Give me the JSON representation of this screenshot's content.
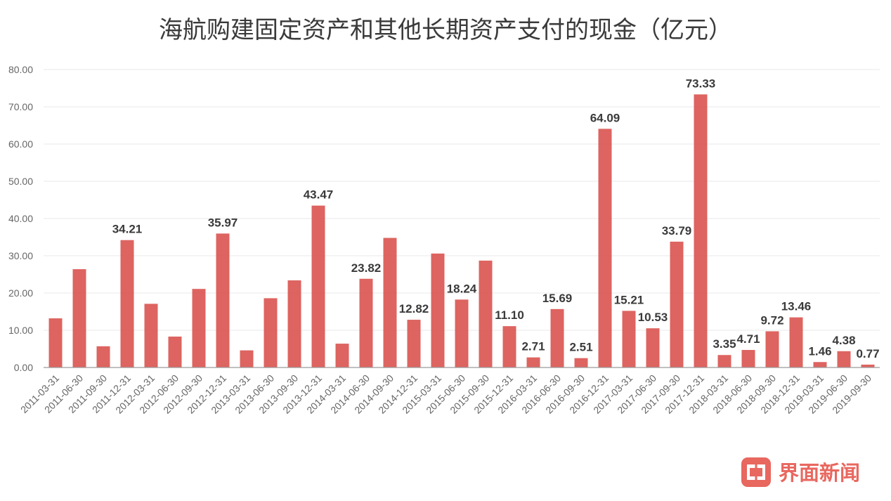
{
  "chart_data": {
    "type": "bar",
    "title": "海航购建固定资产和其他长期资产支付的现金（亿元）",
    "xlabel": "",
    "ylabel": "",
    "ylim": [
      0,
      80
    ],
    "yticks": [
      "0.00",
      "10.00",
      "20.00",
      "30.00",
      "40.00",
      "50.00",
      "60.00",
      "70.00",
      "80.00"
    ],
    "grid": true,
    "categories": [
      "2011-03-31",
      "2011-06-30",
      "2011-09-30",
      "2011-12-31",
      "2012-03-31",
      "2012-06-30",
      "2012-09-30",
      "2012-12-31",
      "2013-03-31",
      "2013-06-30",
      "2013-09-30",
      "2013-12-31",
      "2014-03-31",
      "2014-06-30",
      "2014-09-30",
      "2014-12-31",
      "2015-03-31",
      "2015-06-30",
      "2015-09-30",
      "2015-12-31",
      "2016-03-31",
      "2016-06-30",
      "2016-09-30",
      "2016-12-31",
      "2017-03-31",
      "2017-06-30",
      "2017-09-30",
      "2017-12-31",
      "2018-03-31",
      "2018-06-30",
      "2018-09-30",
      "2018-12-31",
      "2019-03-31",
      "2019-06-30",
      "2019-09-30"
    ],
    "values": [
      13.2,
      26.4,
      5.7,
      34.21,
      17.1,
      8.3,
      21.1,
      35.97,
      4.6,
      18.6,
      23.4,
      43.47,
      6.4,
      23.82,
      34.8,
      12.82,
      30.6,
      18.24,
      28.7,
      11.1,
      2.71,
      15.69,
      2.51,
      64.09,
      15.21,
      10.53,
      33.79,
      73.33,
      3.35,
      4.71,
      9.72,
      13.46,
      1.46,
      4.38,
      0.77
    ],
    "data_labels": [
      "",
      "",
      "",
      "34.21",
      "",
      "",
      "",
      "35.97",
      "",
      "",
      "",
      "43.47",
      "",
      "23.82",
      "",
      "12.82",
      "",
      "18.24",
      "",
      "11.10",
      "2.71",
      "15.69",
      "2.51",
      "64.09",
      "15.21",
      "10.53",
      "33.79",
      "73.33",
      "3.35",
      "4.71",
      "9.72",
      "13.46",
      "1.46",
      "4.38",
      "0.77"
    ],
    "bar_color": "#d9534f"
  },
  "watermark": {
    "text": "界面新闻",
    "color": "#e8675f",
    "icon": "jiemian-logo-icon"
  }
}
